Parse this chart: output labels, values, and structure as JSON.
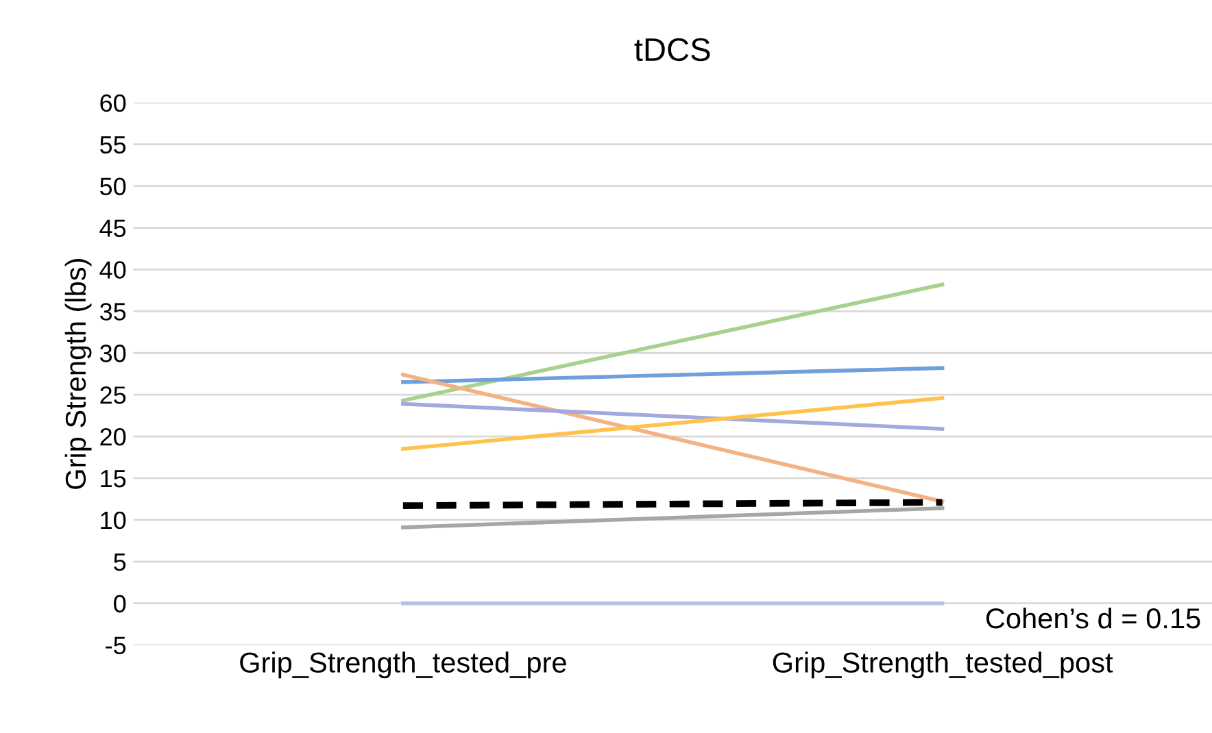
{
  "chart_data": {
    "type": "line",
    "title": "tDCS",
    "ylabel": "Grip Strength (lbs)",
    "categories": [
      "Grip_Strength_tested_pre",
      "Grip_Strength_tested_post"
    ],
    "series": [
      {
        "color": "#a9d18e",
        "values": [
          24.3,
          38.2
        ]
      },
      {
        "color": "#6fa0dc",
        "values": [
          26.5,
          28.2
        ]
      },
      {
        "color": "#f4b183",
        "values": [
          27.4,
          12.2
        ]
      },
      {
        "color": "#a2a9dc",
        "values": [
          23.9,
          20.9
        ]
      },
      {
        "color": "#ffc24d",
        "values": [
          18.5,
          24.6
        ]
      },
      {
        "color": "#a6a6a6",
        "values": [
          9.1,
          11.4
        ]
      },
      {
        "color": "#b4c0e4",
        "values": [
          0,
          0
        ]
      },
      {
        "color": "#000000",
        "values": [
          11.7,
          12.1
        ],
        "line_style": "dashed"
      }
    ],
    "ylim": [
      -5,
      60
    ],
    "yticks": [
      -5,
      0,
      5,
      10,
      15,
      20,
      25,
      30,
      35,
      40,
      45,
      50,
      55,
      60
    ],
    "grid": "y",
    "legend": false,
    "marker": "none",
    "line_style": "solid",
    "annotations": [
      "Cohen’s d = 0.15"
    ]
  }
}
